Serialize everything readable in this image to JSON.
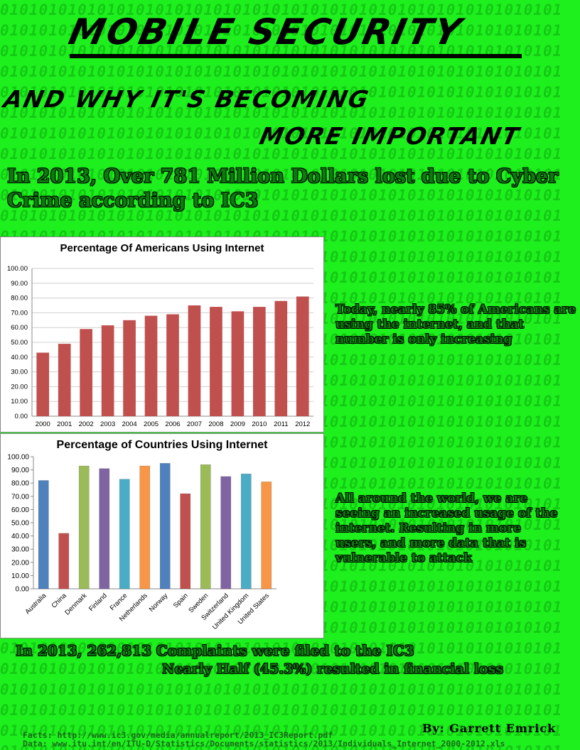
{
  "poster": {
    "title": "MOBILE SECURITY",
    "subtitle_line1": "AND WHY IT'S BECOMING",
    "subtitle_line2": "MORE IMPORTANT",
    "headline": "In 2013, Over 781 Million Dollars lost due to Cyber Crime according to IC3",
    "side_text_1": "Today, nearly 85% of Americans are using the internet, and that number is only increasing",
    "side_text_2": "All around the world, we are seeing an increased usage of the internet. Resulting in more users, and more data that is vulnerable to attack",
    "stat_1": "In 2013, 262,813 Complaints were filed to the IC3",
    "stat_2": "Nearly Half (45.3%) resulted in financial loss",
    "byline": "By: Garrett Emrick",
    "facts": "Facts: http://www.ic3.gov/media/annualreport/2013_IC3Report.pdf",
    "data_source": "Data: www.itu.int/en/ITU-D/Statistics/Documents/statistics/2013/Individuals_Internet_2000-2012.xls"
  },
  "colors": {
    "background": "#1ef01e",
    "binary_pattern": "#14c914",
    "headline_text": "#0d7a0d",
    "chart1_bar": "#c0504d"
  },
  "chart_data": [
    {
      "type": "bar",
      "title": "Percentage Of Americans Using Internet",
      "categories": [
        "2000",
        "2001",
        "2002",
        "2003",
        "2004",
        "2005",
        "2006",
        "2007",
        "2008",
        "2009",
        "2010",
        "2011",
        "2012"
      ],
      "values": [
        43,
        49,
        59,
        61.5,
        65,
        68,
        69,
        75,
        74,
        71,
        74,
        78,
        81
      ],
      "ylim": [
        0,
        100
      ],
      "yticks": [
        "0.00",
        "10.00",
        "20.00",
        "30.00",
        "40.00",
        "50.00",
        "60.00",
        "70.00",
        "80.00",
        "90.00",
        "100.00"
      ],
      "grid": true,
      "xlabel": "",
      "ylabel": ""
    },
    {
      "type": "bar",
      "title": "Percentage of Countries Using Internet",
      "categories": [
        "Australia",
        "China",
        "Denmark",
        "Finland",
        "France",
        "Netherlands",
        "Norway",
        "Spain",
        "Sweden",
        "Switzerland",
        "United Kingdom",
        "United States"
      ],
      "values": [
        82,
        42,
        93,
        91,
        83,
        93,
        95,
        72,
        94,
        85,
        87,
        81
      ],
      "colors": [
        "#4f81bd",
        "#c0504d",
        "#9bbb59",
        "#8064a2",
        "#4bacc6",
        "#f79646",
        "#4f81bd",
        "#c0504d",
        "#9bbb59",
        "#8064a2",
        "#4bacc6",
        "#f79646"
      ],
      "ylim": [
        0,
        100
      ],
      "yticks": [
        "0.00",
        "10.00",
        "20.00",
        "30.00",
        "40.00",
        "50.00",
        "60.00",
        "70.00",
        "80.00",
        "90.00",
        "100.00"
      ],
      "grid": false,
      "xlabel": "",
      "ylabel": ""
    }
  ]
}
